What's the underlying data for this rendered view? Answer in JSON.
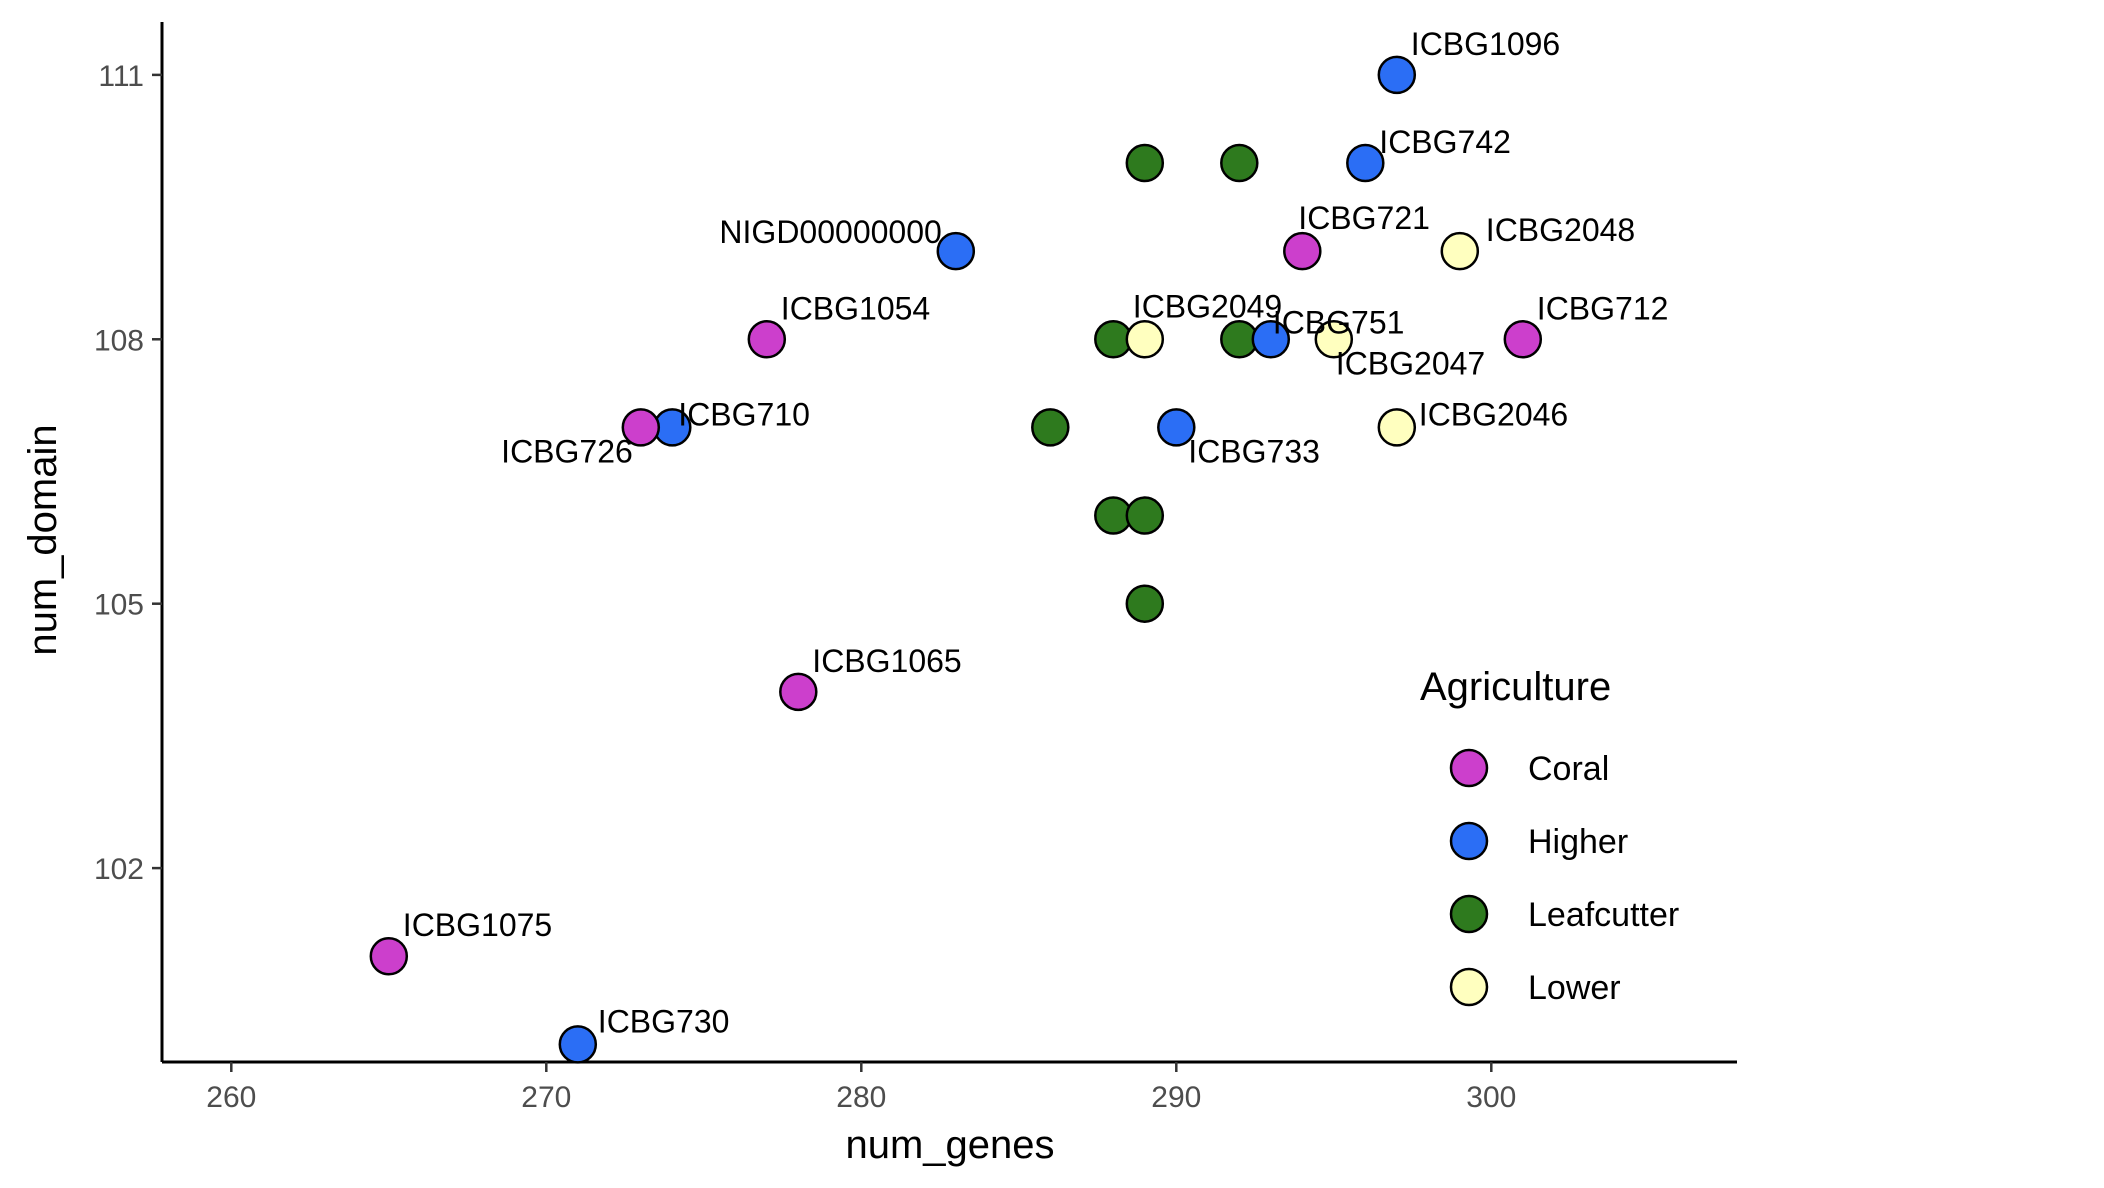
{
  "chart_data": {
    "type": "scatter",
    "xlabel": "num_genes",
    "ylabel": "num_domain",
    "xlim": [
      257.8,
      307.8
    ],
    "ylim": [
      99.8,
      111.6
    ],
    "xticks": [
      260,
      270,
      280,
      290,
      300
    ],
    "yticks": [
      102,
      105,
      108,
      111
    ],
    "grid": false,
    "legend": {
      "title": "Agriculture",
      "placement": "right",
      "entries": [
        {
          "name": "Coral",
          "color": "#CC3FCC"
        },
        {
          "name": "Higher",
          "color": "#2B6EF5"
        },
        {
          "name": "Leafcutter",
          "color": "#2E7A1E"
        },
        {
          "name": "Lower",
          "color": "#FFFFBF"
        }
      ]
    },
    "points": [
      {
        "x": 297,
        "y": 111,
        "group": "Higher",
        "label": "ICBG1096"
      },
      {
        "x": 296,
        "y": 110,
        "group": "Higher",
        "label": "ICBG742"
      },
      {
        "x": 289,
        "y": 110,
        "group": "Leafcutter",
        "label": ""
      },
      {
        "x": 292,
        "y": 110,
        "group": "Leafcutter",
        "label": ""
      },
      {
        "x": 283,
        "y": 109,
        "group": "Higher",
        "label": "NIGD00000000"
      },
      {
        "x": 294,
        "y": 109,
        "group": "Coral",
        "label": "ICBG721"
      },
      {
        "x": 299,
        "y": 109,
        "group": "Lower",
        "label": "ICBG2048"
      },
      {
        "x": 277,
        "y": 108,
        "group": "Coral",
        "label": "ICBG1054"
      },
      {
        "x": 288,
        "y": 108,
        "group": "Leafcutter",
        "label": ""
      },
      {
        "x": 289,
        "y": 108,
        "group": "Lower",
        "label": "ICBG2049"
      },
      {
        "x": 292,
        "y": 108,
        "group": "Leafcutter",
        "label": ""
      },
      {
        "x": 293,
        "y": 108,
        "group": "Higher",
        "label": "ICBG751"
      },
      {
        "x": 295,
        "y": 108,
        "group": "Lower",
        "label": "ICBG2047"
      },
      {
        "x": 301,
        "y": 108,
        "group": "Coral",
        "label": "ICBG712"
      },
      {
        "x": 274,
        "y": 107,
        "group": "Higher",
        "label": "ICBG710"
      },
      {
        "x": 273,
        "y": 107,
        "group": "Coral",
        "label": "ICBG726"
      },
      {
        "x": 286,
        "y": 107,
        "group": "Leafcutter",
        "label": ""
      },
      {
        "x": 290,
        "y": 107,
        "group": "Higher",
        "label": "ICBG733"
      },
      {
        "x": 297,
        "y": 107,
        "group": "Lower",
        "label": "ICBG2046"
      },
      {
        "x": 288,
        "y": 106,
        "group": "Leafcutter",
        "label": ""
      },
      {
        "x": 289,
        "y": 106,
        "group": "Leafcutter",
        "label": ""
      },
      {
        "x": 289,
        "y": 105,
        "group": "Leafcutter",
        "label": ""
      },
      {
        "x": 278,
        "y": 104,
        "group": "Coral",
        "label": "ICBG1065"
      },
      {
        "x": 265,
        "y": 101,
        "group": "Coral",
        "label": "ICBG1075"
      },
      {
        "x": 271,
        "y": 100,
        "group": "Higher",
        "label": "ICBG730"
      }
    ]
  }
}
